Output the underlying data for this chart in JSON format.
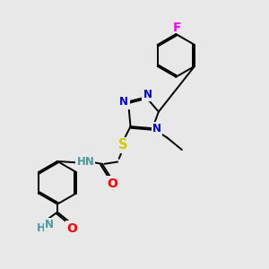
{
  "bg_color": "#e8e8e8",
  "bond_color": "#000000",
  "N_color": "#0000cc",
  "O_color": "#ff0000",
  "S_color": "#cccc00",
  "F_color": "#ff00ff",
  "H_color": "#4a9a9a",
  "lw": 1.4,
  "fs": 8.5,
  "figsize": [
    3.0,
    3.0
  ],
  "dpi": 100,
  "xlim": [
    0,
    10
  ],
  "ylim": [
    0,
    10
  ]
}
